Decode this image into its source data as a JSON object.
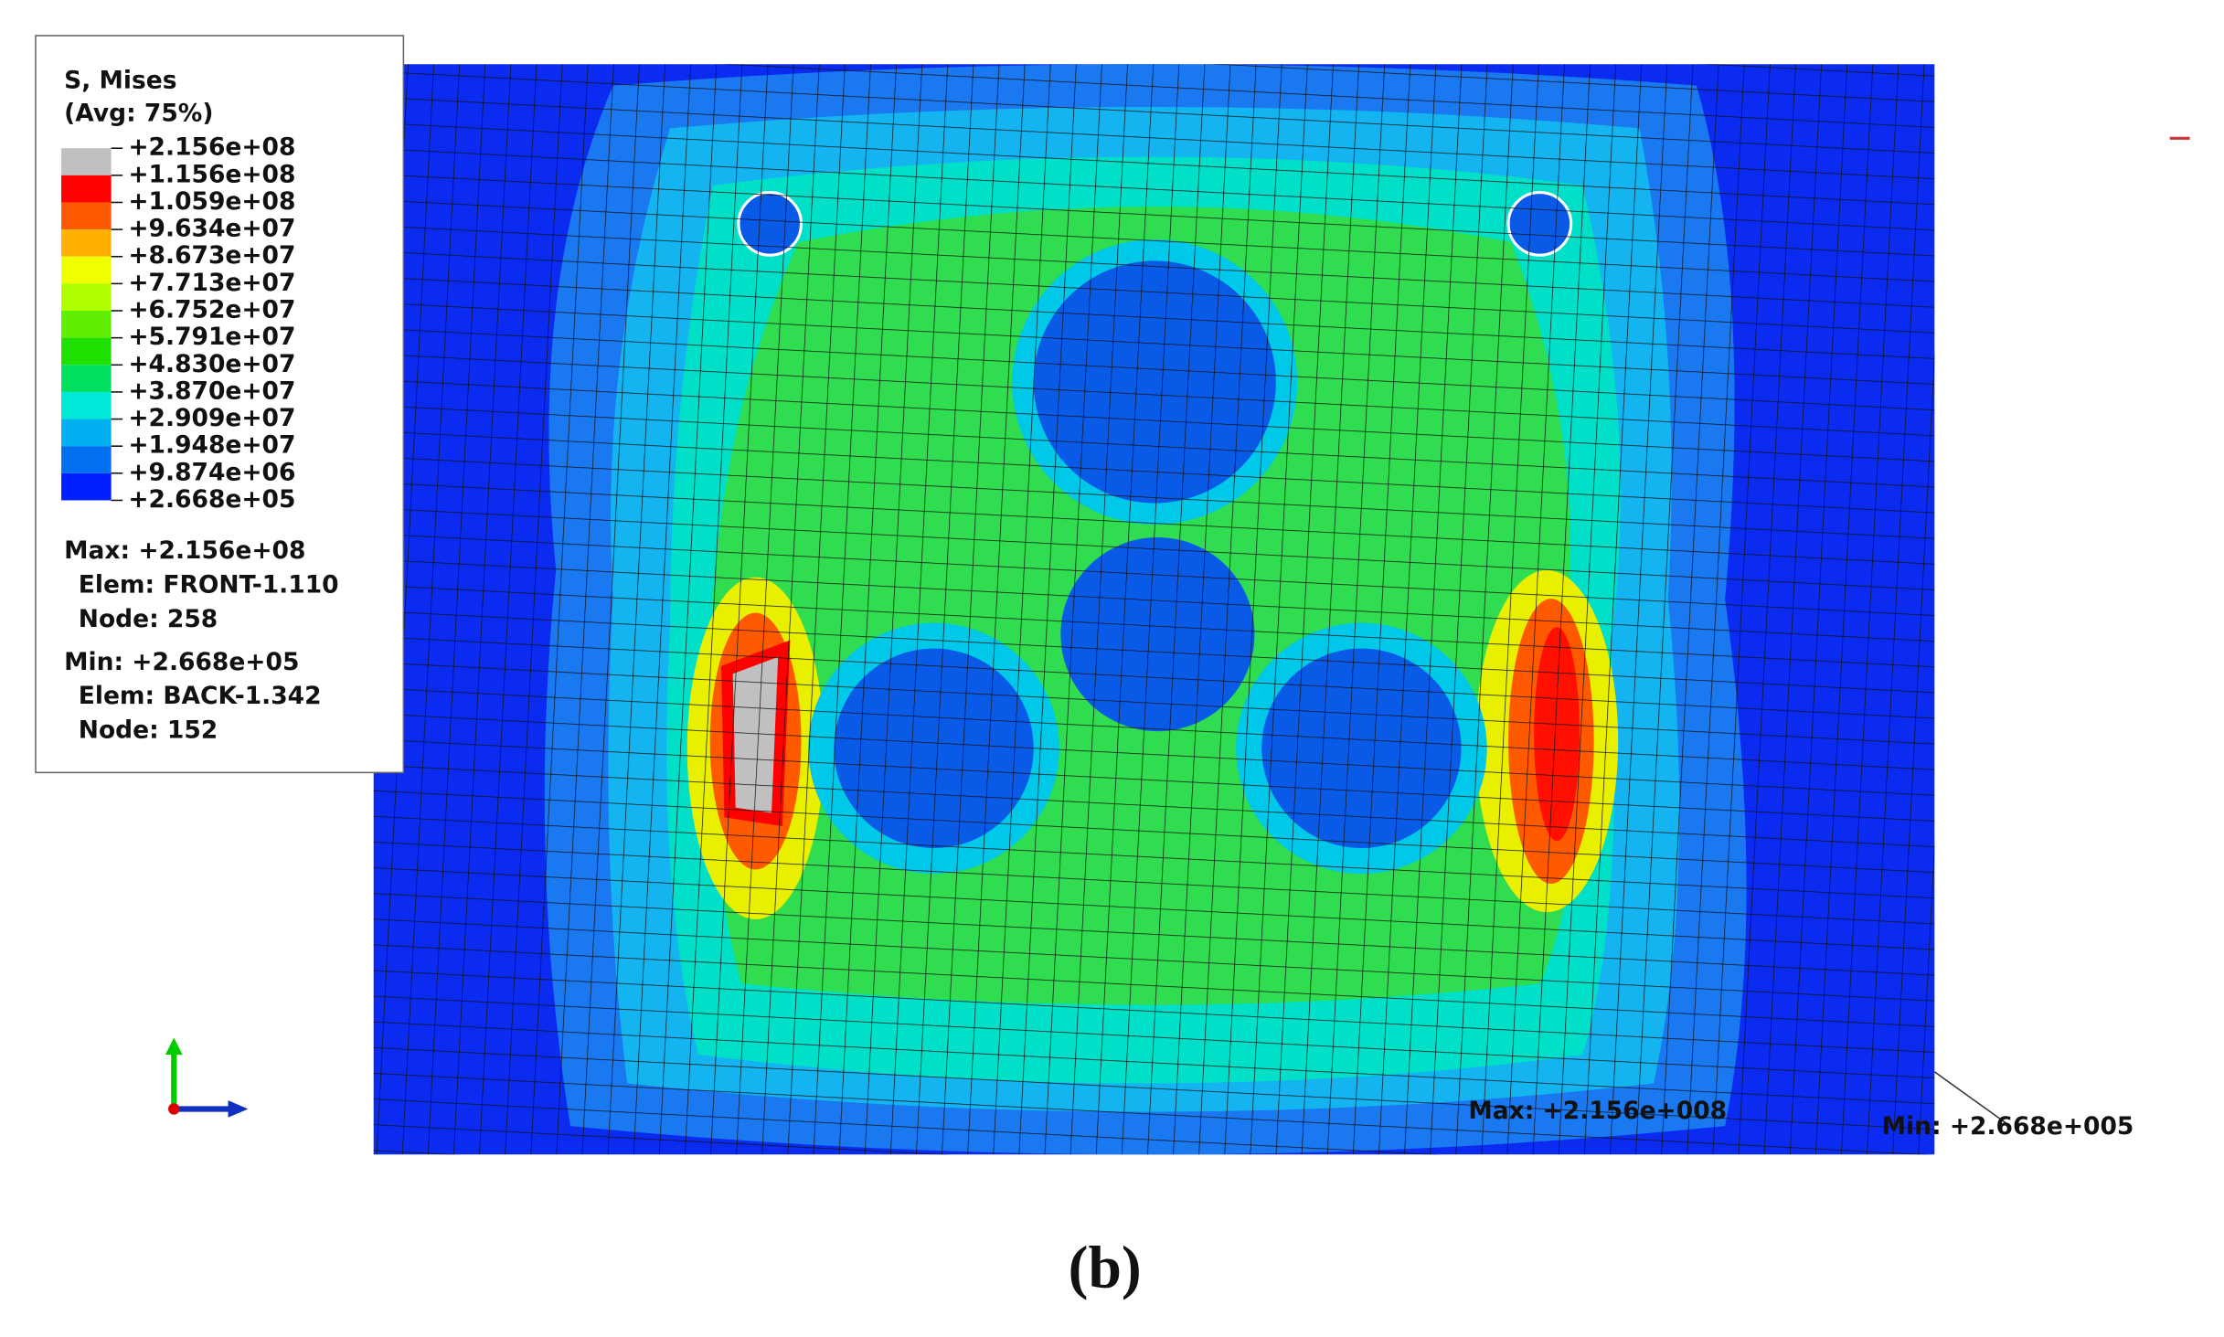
{
  "legend": {
    "title": "S, Mises",
    "subtitle": "(Avg: 75%)",
    "levels": [
      "+2.156e+08",
      "+1.156e+08",
      "+1.059e+08",
      "+9.634e+07",
      "+8.673e+07",
      "+7.713e+07",
      "+6.752e+07",
      "+5.791e+07",
      "+4.830e+07",
      "+3.870e+07",
      "+2.909e+07",
      "+1.948e+07",
      "+9.874e+06",
      "+2.668e+05"
    ],
    "colors": [
      "#c0c0c0",
      "#ff0000",
      "#ff5a00",
      "#ffb000",
      "#f0ff00",
      "#b0ff00",
      "#60ef00",
      "#20e000",
      "#00e060",
      "#00e8d8",
      "#00b0f0",
      "#0070f0",
      "#0020ff"
    ],
    "max": {
      "label": "Max: +2.156e+08",
      "elem": "Elem: FRONT-1.110",
      "node": "Node: 258"
    },
    "min": {
      "label": "Min: +2.668e+05",
      "elem": "Elem: BACK-1.342",
      "node": "Node: 152"
    }
  },
  "annotations": {
    "max": "Max: +2.156e+008",
    "min": "Min: +2.668e+005"
  },
  "caption": "(b)"
}
